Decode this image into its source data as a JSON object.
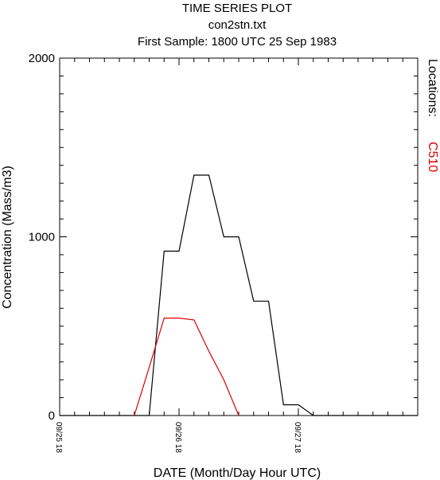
{
  "chart_data": {
    "type": "line",
    "title_lines": [
      "TIME SERIES PLOT",
      "con2stn.txt",
      "First Sample: 1800 UTC 25 Sep 1983"
    ],
    "xlabel": "DATE (Month/Day Hour UTC)",
    "ylabel": "Concentration (Mass/m3)",
    "ylim": [
      0,
      2000
    ],
    "y_ticks": [
      0,
      1000,
      2000
    ],
    "x_unit": "hours since 09/25 18",
    "xlim": [
      0,
      72
    ],
    "x_tick_labels": [
      {
        "x": 0,
        "label": "09/25 18"
      },
      {
        "x": 24,
        "label": "09/26 18"
      },
      {
        "x": 48,
        "label": "09/27 18"
      }
    ],
    "legend_title": "Locations:",
    "legend_position": "right",
    "grid": false,
    "series": [
      {
        "name": "",
        "color": "#000000",
        "points": [
          [
            0,
            0
          ],
          [
            18,
            0
          ],
          [
            21,
            920
          ],
          [
            24,
            920
          ],
          [
            27,
            1345
          ],
          [
            30,
            1345
          ],
          [
            33,
            1000
          ],
          [
            36,
            1000
          ],
          [
            39,
            640
          ],
          [
            42,
            640
          ],
          [
            45,
            60
          ],
          [
            48,
            60
          ],
          [
            51,
            0
          ],
          [
            72,
            0
          ]
        ]
      },
      {
        "name": "C510",
        "color": "#dd0000",
        "points": [
          [
            15,
            0
          ],
          [
            18,
            270
          ],
          [
            21,
            545
          ],
          [
            24,
            545
          ],
          [
            27,
            535
          ],
          [
            30,
            360
          ],
          [
            33,
            200
          ],
          [
            36,
            0
          ]
        ]
      }
    ]
  }
}
